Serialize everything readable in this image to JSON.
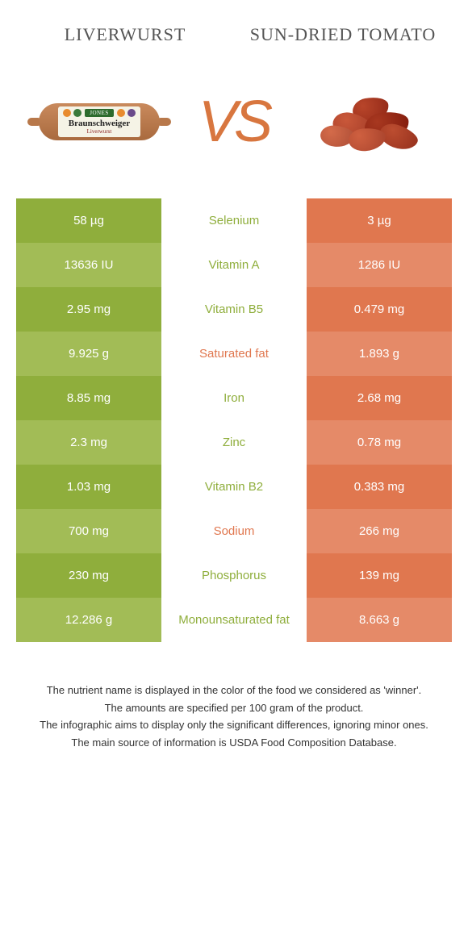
{
  "header": {
    "left": "Liverwurst",
    "right": "Sun-dried tomato"
  },
  "vs": "VS",
  "colors": {
    "left_primary": "#8fae3c",
    "left_alt": "#a2bc56",
    "right_primary": "#e0774f",
    "right_alt": "#e58a68",
    "mid_text_left": "#8fae3c",
    "mid_text_right": "#e0774f"
  },
  "sausage": {
    "brand": "JONES",
    "name": "Braunschweiger",
    "sub": "Liverwurst"
  },
  "tomato_pieces": [
    {
      "l": 55,
      "t": 10,
      "w": 45,
      "h": 30,
      "c": "#b8452a",
      "r": -10
    },
    {
      "l": 30,
      "t": 30,
      "w": 50,
      "h": 32,
      "c": "#c9583a",
      "r": 15
    },
    {
      "l": 70,
      "t": 28,
      "w": 55,
      "h": 35,
      "c": "#a83820",
      "r": -8
    },
    {
      "l": 15,
      "t": 45,
      "w": 42,
      "h": 26,
      "c": "#d46b4a",
      "r": 5
    },
    {
      "l": 88,
      "t": 45,
      "w": 48,
      "h": 28,
      "c": "#bc4d30",
      "r": 20
    },
    {
      "l": 50,
      "t": 48,
      "w": 46,
      "h": 28,
      "c": "#cf6040",
      "r": -5
    }
  ],
  "rows": [
    {
      "left": "58 µg",
      "label": "Selenium",
      "right": "3 µg",
      "winner": "left"
    },
    {
      "left": "13636 IU",
      "label": "Vitamin A",
      "right": "1286 IU",
      "winner": "left"
    },
    {
      "left": "2.95 mg",
      "label": "Vitamin B5",
      "right": "0.479 mg",
      "winner": "left"
    },
    {
      "left": "9.925 g",
      "label": "Saturated fat",
      "right": "1.893 g",
      "winner": "right"
    },
    {
      "left": "8.85 mg",
      "label": "Iron",
      "right": "2.68 mg",
      "winner": "left"
    },
    {
      "left": "2.3 mg",
      "label": "Zinc",
      "right": "0.78 mg",
      "winner": "left"
    },
    {
      "left": "1.03 mg",
      "label": "Vitamin B2",
      "right": "0.383 mg",
      "winner": "left"
    },
    {
      "left": "700 mg",
      "label": "Sodium",
      "right": "266 mg",
      "winner": "right"
    },
    {
      "left": "230 mg",
      "label": "Phosphorus",
      "right": "139 mg",
      "winner": "left"
    },
    {
      "left": "12.286 g",
      "label": "Monounsaturated fat",
      "right": "8.663 g",
      "winner": "left"
    }
  ],
  "footnotes": [
    "The nutrient name is displayed in the color of the food we considered as 'winner'.",
    "The amounts are specified per 100 gram of the product.",
    "The infographic aims to display only the significant differences, ignoring minor ones.",
    "The main source of information is USDA Food Composition Database."
  ]
}
